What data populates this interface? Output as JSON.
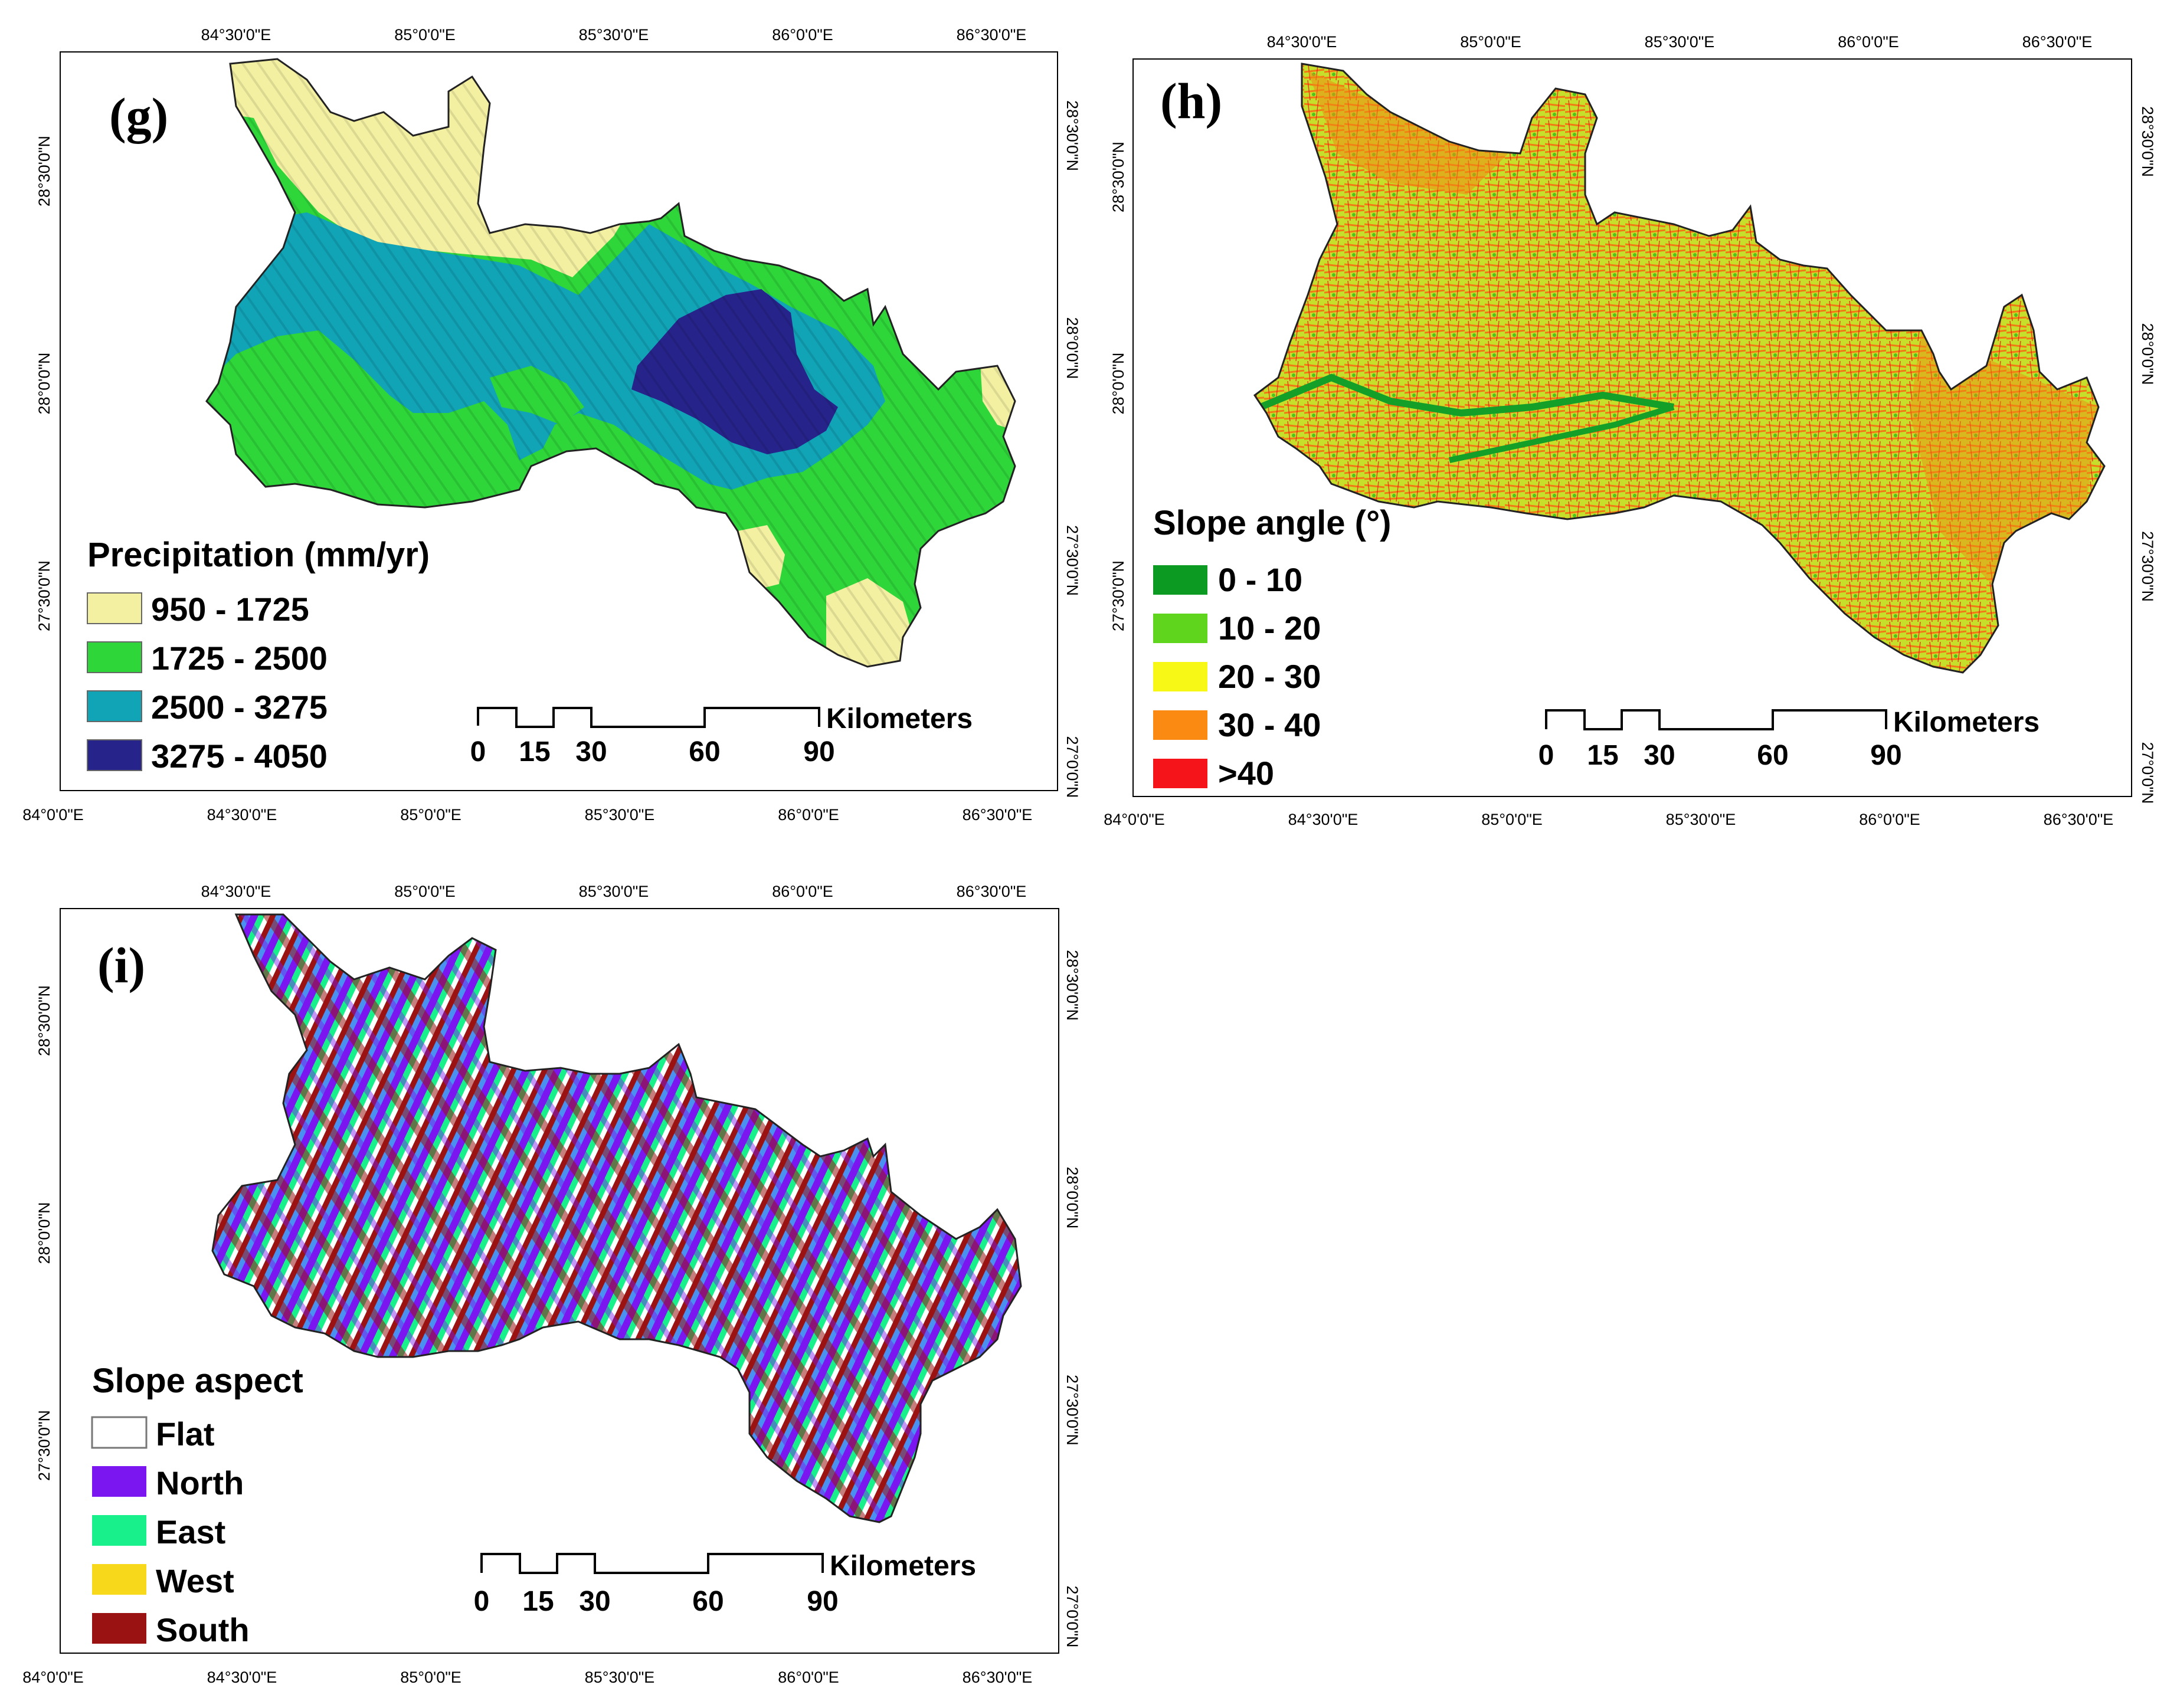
{
  "panels": [
    {
      "id": "g",
      "letter": "(g)",
      "ticks": {
        "top": [
          "84°30'0\"E",
          "85°0'0\"E",
          "85°30'0\"E",
          "86°0'0\"E",
          "86°30'0\"E"
        ],
        "bottom": [
          "84°0'0\"E",
          "84°30'0\"E",
          "85°0'0\"E",
          "85°30'0\"E",
          "86°0'0\"E",
          "86°30'0\"E"
        ],
        "left": [
          "28°30'0\"N",
          "28°0'0\"N",
          "27°30'0\"N"
        ],
        "right": [
          "28°30'0\"N",
          "28°0'0\"N",
          "27°30'0\"N",
          "27°0'0\"N"
        ]
      },
      "legend": {
        "title": "Precipitation (mm/yr)",
        "items": [
          {
            "label": "950 - 1725",
            "color": "#f3f0a2"
          },
          {
            "label": "1725 - 2500",
            "color": "#2ed63a"
          },
          {
            "label": "2500 - 3275",
            "color": "#11a3b6"
          },
          {
            "label": "3275 - 4050",
            "color": "#26248a"
          }
        ]
      },
      "scalebar": {
        "unit": "Kilometers",
        "labels": [
          "0",
          "15",
          "30",
          "60",
          "90"
        ]
      }
    },
    {
      "id": "h",
      "letter": "(h)",
      "ticks": {
        "top": [
          "84°30'0\"E",
          "85°0'0\"E",
          "85°30'0\"E",
          "86°0'0\"E",
          "86°30'0\"E"
        ],
        "bottom": [
          "84°0'0\"E",
          "84°30'0\"E",
          "85°0'0\"E",
          "85°30'0\"E",
          "86°0'0\"E",
          "86°30'0\"E"
        ],
        "left": [
          "28°30'0\"N",
          "28°0'0\"N",
          "27°30'0\"N"
        ],
        "right": [
          "28°30'0\"N",
          "28°0'0\"N",
          "27°30'0\"N",
          "27°0'0\"N"
        ]
      },
      "legend": {
        "title": "Slope angle (°)",
        "items": [
          {
            "label": "0 - 10",
            "color": "#0d9a22"
          },
          {
            "label": "10 - 20",
            "color": "#5fd51e"
          },
          {
            "label": "20 - 30",
            "color": "#f8f816"
          },
          {
            "label": "30 - 40",
            "color": "#fb8a12"
          },
          {
            "label": ">40",
            "color": "#f5141a"
          }
        ]
      },
      "scalebar": {
        "unit": "Kilometers",
        "labels": [
          "0",
          "15",
          "30",
          "60",
          "90"
        ]
      }
    },
    {
      "id": "i",
      "letter": "(i)",
      "ticks": {
        "top": [
          "84°30'0\"E",
          "85°0'0\"E",
          "85°30'0\"E",
          "86°0'0\"E",
          "86°30'0\"E"
        ],
        "bottom": [
          "84°0'0\"E",
          "84°30'0\"E",
          "85°0'0\"E",
          "85°30'0\"E",
          "86°0'0\"E",
          "86°30'0\"E"
        ],
        "left": [
          "28°30'0\"N",
          "28°0'0\"N",
          "27°30'0\"N"
        ],
        "right": [
          "28°30'0\"N",
          "28°0'0\"N",
          "27°30'0\"N",
          "27°0'0\"N"
        ]
      },
      "legend": {
        "title": "Slope aspect",
        "items": [
          {
            "label": "Flat",
            "color": "#ffffff"
          },
          {
            "label": "North",
            "color": "#7b16f0"
          },
          {
            "label": "East",
            "color": "#18f08c"
          },
          {
            "label": "West",
            "color": "#f8d81a"
          },
          {
            "label": "South",
            "color": "#9a1212"
          }
        ]
      },
      "scalebar": {
        "unit": "Kilometers",
        "labels": [
          "0",
          "15",
          "30",
          "60",
          "90"
        ]
      }
    }
  ]
}
